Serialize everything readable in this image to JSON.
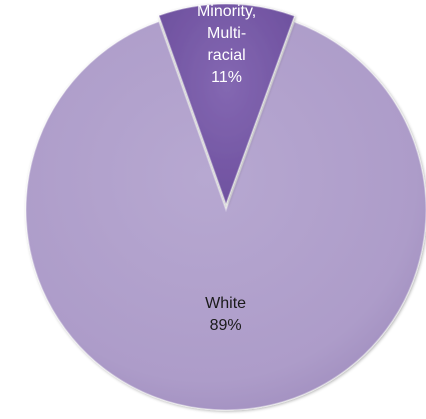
{
  "chart_data": {
    "type": "pie",
    "slices": [
      {
        "name": "White",
        "percent_label": "89%",
        "value": 89,
        "color": "#ad9cc9",
        "label_color": "#1a1a1a"
      },
      {
        "name": "Minority, Multi-racial",
        "name_lines": [
          "Minority,",
          "Multi-",
          "racial"
        ],
        "percent_label": "11%",
        "value": 11,
        "color": "#7657a6",
        "label_color": "#ffffff"
      }
    ],
    "start_angle_deg": 20,
    "exploded_slice": "Minority, Multi-racial",
    "style": "3d-bevel"
  }
}
